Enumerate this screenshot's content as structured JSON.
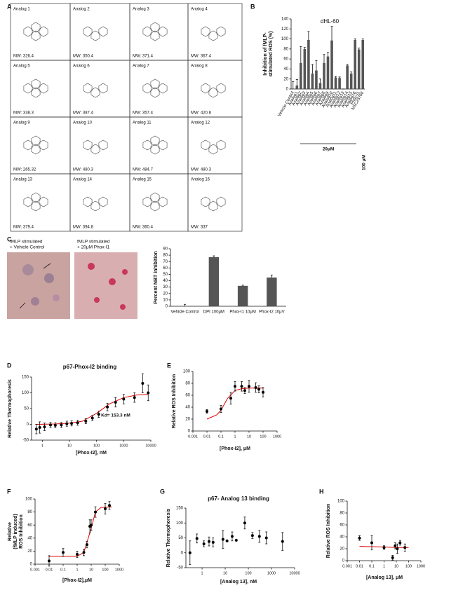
{
  "structures": {
    "panel": "A",
    "items": [
      {
        "name": "Analog 1",
        "mw": "MW: 326.4"
      },
      {
        "name": "Analog 2",
        "mw": "MW: 350.4"
      },
      {
        "name": "Analog 3",
        "mw": "MW: 371.4"
      },
      {
        "name": "Analog 4",
        "mw": "MW: 367.4"
      },
      {
        "name": "Analog 5",
        "mw": "MW: 338.3"
      },
      {
        "name": "Analog 6",
        "mw": "MW: 387.4"
      },
      {
        "name": "Analog 7",
        "mw": "MW: 357.4"
      },
      {
        "name": "Analog 8",
        "mw": "MW: 420.8"
      },
      {
        "name": "Analog 9",
        "mw": "MW: 265.32"
      },
      {
        "name": "Analog 10",
        "mw": "MW: 480.3"
      },
      {
        "name": "Analog 11",
        "mw": "MW: 484.7"
      },
      {
        "name": "Analog 12",
        "mw": "MW: 480.3"
      },
      {
        "name": "Analog 13",
        "mw": "MW: 379.4"
      },
      {
        "name": "Analog 14",
        "mw": "MW: 394.8"
      },
      {
        "name": "Analog 15",
        "mw": "MW: 360.4"
      },
      {
        "name": "Analog 16",
        "mw": "MW: 337"
      }
    ]
  },
  "images": {
    "captions": [
      [
        "fMLP stimulated",
        "+ Vehicle Control"
      ],
      [
        "fMLP stimulated",
        "+ 20μM Phox-I1"
      ]
    ]
  },
  "chart_data": [
    {
      "panel": "B",
      "type": "bar",
      "title": "dHL-60",
      "ylabel": [
        "Inhibition of fMLP-",
        "stimulated ROS (%)"
      ],
      "categories": [
        "Vehicle Control",
        "Analog1",
        "Analog2",
        "Analog3",
        "Analog4",
        "Analog5",
        "Analog6",
        "Analog7",
        "Analog8",
        "Analog9",
        "Analog10",
        "Analog11",
        "Analog12",
        "Analog13",
        "Analog14",
        "Analog15",
        "Analog16",
        "Phox-I1",
        "NSC23766"
      ],
      "values": [
        0,
        7,
        52,
        80,
        98,
        31,
        37,
        12,
        52,
        65,
        97,
        23,
        22,
        0,
        47,
        31,
        98,
        79,
        98
      ],
      "errors": [
        15,
        12,
        33,
        3,
        17,
        18,
        20,
        8,
        17,
        8,
        28,
        2,
        2,
        0,
        2,
        3,
        2,
        3,
        2
      ],
      "color": "#555555",
      "ylim": [
        0,
        140
      ],
      "yticks": [
        0,
        20,
        40,
        60,
        80,
        100,
        120,
        140
      ],
      "annotations": [
        "20μM",
        "100 μM"
      ]
    },
    {
      "panel": "C",
      "type": "bar",
      "ylabel": "Percent NBT inhibition",
      "categories": [
        "Vehicle Control",
        "DPI 100μM",
        "Phox-I1 10μM",
        "Phox-I2 10μV"
      ],
      "values": [
        0,
        77,
        32,
        45
      ],
      "errors": [
        3,
        2,
        1,
        4
      ],
      "color": "#555555",
      "ylim": [
        0,
        90
      ],
      "yticks": [
        0,
        10,
        20,
        30,
        40,
        50,
        60,
        70,
        80,
        90
      ]
    },
    {
      "panel": "D",
      "type": "scatter",
      "title": "p67-Phox-I2 binding",
      "xlabel": "[Phox-I2], nM",
      "ylabel": "Relative Thermophoresis",
      "xscale": "log",
      "x": [
        0.6,
        0.8,
        1.2,
        2,
        3,
        5,
        8,
        12,
        20,
        40,
        70,
        120,
        250,
        500,
        1000,
        2500,
        5000,
        8000
      ],
      "values": [
        -15,
        -10,
        -8,
        -2,
        -3,
        -2,
        2,
        3,
        5,
        10,
        20,
        32,
        55,
        70,
        80,
        85,
        130,
        100
      ],
      "errors": [
        15,
        18,
        12,
        8,
        8,
        8,
        8,
        8,
        8,
        8,
        8,
        10,
        12,
        15,
        15,
        15,
        30,
        25
      ],
      "fit": {
        "x": [
          0.6,
          3,
          10,
          30,
          100,
          300,
          1000,
          3000,
          8000
        ],
        "values": [
          0,
          1,
          4,
          10,
          35,
          65,
          85,
          93,
          95
        ]
      },
      "color": "#000000",
      "fit_color": "#e00000",
      "xlim": [
        0.4,
        10000
      ],
      "xticks": [
        1,
        10,
        100,
        1000,
        10000
      ],
      "ylim": [
        -50,
        150
      ],
      "yticks": [
        -50,
        0,
        50,
        100,
        150
      ],
      "annotations": [
        "Kd= 153.3 nM"
      ]
    },
    {
      "panel": "E",
      "type": "scatter",
      "xlabel": "[Phox-I2], μM",
      "ylabel": "Relative ROS Inhibition",
      "xscale": "log",
      "x": [
        0.01,
        0.1,
        0.5,
        1,
        3,
        5,
        10,
        30,
        50,
        100
      ],
      "values": [
        33,
        37,
        55,
        75,
        75,
        68,
        75,
        73,
        70,
        65
      ],
      "errors": [
        3,
        6,
        10,
        8,
        8,
        5,
        10,
        8,
        6,
        8
      ],
      "fit": {
        "x": [
          0.01,
          0.05,
          0.1,
          0.3,
          1,
          3,
          10,
          100
        ],
        "values": [
          20,
          27,
          35,
          55,
          68,
          71,
          72,
          72
        ]
      },
      "color": "#000000",
      "fit_color": "#e00000",
      "xlim": [
        0.001,
        1000
      ],
      "xticks": [
        0.001,
        0.01,
        0.1,
        1,
        10,
        100,
        1000
      ],
      "ylim": [
        0,
        100
      ],
      "yticks": [
        0,
        20,
        40,
        60,
        80,
        100
      ]
    },
    {
      "panel": "F",
      "type": "scatter",
      "xlabel": "[Phox-I2],μM",
      "ylabel": [
        "Relative",
        "(fMLP induced)",
        "ROS Inhibition"
      ],
      "xscale": "log",
      "x": [
        0.01,
        0.1,
        1,
        3,
        5,
        8,
        10,
        20,
        100,
        200
      ],
      "values": [
        5,
        18,
        15,
        18,
        30,
        58,
        60,
        80,
        85,
        90
      ],
      "errors": [
        8,
        6,
        5,
        5,
        5,
        10,
        8,
        8,
        8,
        6
      ],
      "fit": {
        "x": [
          0.01,
          1,
          3,
          10,
          20,
          50,
          300
        ],
        "values": [
          12,
          12,
          18,
          55,
          80,
          87,
          88
        ]
      },
      "color": "#000000",
      "fit_color": "#e00000",
      "xlim": [
        0.001,
        1000
      ],
      "xticks": [
        0.001,
        0.01,
        0.1,
        1,
        10,
        100,
        1000
      ],
      "ylim": [
        0,
        100
      ],
      "yticks": [
        0,
        20,
        40,
        60,
        80,
        100
      ]
    },
    {
      "panel": "G",
      "type": "scatter",
      "title": "p67- Analog 13 binding",
      "xlabel": "[Analog 13], nM",
      "ylabel": "Relative Thermophoresis",
      "xscale": "log",
      "x": [
        0.3,
        0.6,
        1.2,
        2,
        3,
        8,
        12,
        20,
        30,
        70,
        150,
        300,
        600,
        3000
      ],
      "values": [
        0,
        48,
        30,
        38,
        35,
        45,
        40,
        55,
        42,
        100,
        58,
        55,
        50,
        38
      ],
      "errors": [
        40,
        15,
        10,
        15,
        15,
        30,
        0,
        15,
        0,
        20,
        10,
        20,
        20,
        30
      ],
      "color": "#000000",
      "xlim": [
        0.2,
        10000
      ],
      "xticks": [
        1,
        10,
        100,
        1000,
        10000
      ],
      "ylim": [
        -50,
        150
      ],
      "yticks": [
        -50,
        0,
        50,
        100,
        150
      ]
    },
    {
      "panel": "H",
      "type": "scatter",
      "xlabel": "[Analog 13], μM",
      "ylabel": "Relative ROS Inhibition",
      "xscale": "log",
      "x": [
        0.01,
        0.1,
        1,
        5,
        8,
        12,
        20,
        50
      ],
      "values": [
        38,
        30,
        22,
        5,
        25,
        20,
        30,
        22
      ],
      "errors": [
        4,
        12,
        3,
        4,
        5,
        8,
        4,
        6
      ],
      "fit": {
        "x": [
          0.01,
          1,
          10,
          100
        ],
        "values": [
          24,
          23,
          22,
          22
        ]
      },
      "color": "#000000",
      "fit_color": "#e00000",
      "xlim": [
        0.001,
        1000
      ],
      "xticks": [
        0.001,
        0.01,
        0.1,
        1,
        10,
        100,
        1000
      ],
      "ylim": [
        0,
        100
      ],
      "yticks": [
        0,
        20,
        40,
        60,
        80,
        100
      ]
    }
  ]
}
